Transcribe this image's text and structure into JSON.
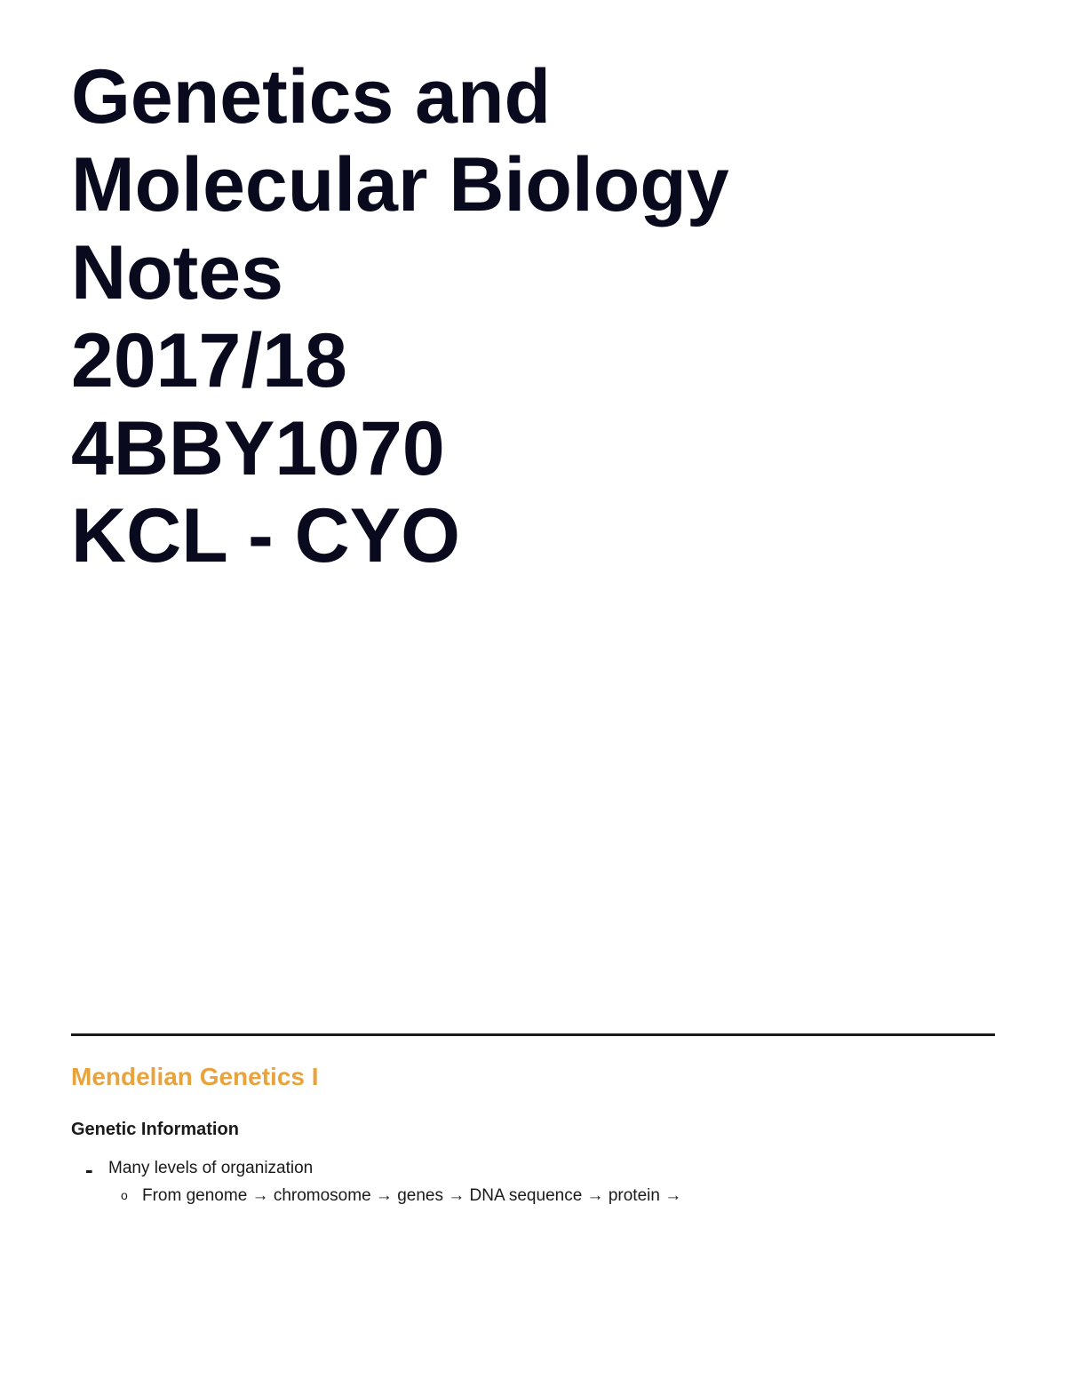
{
  "title": {
    "lines": [
      "Genetics and",
      "Molecular Biology",
      "Notes",
      "2017/18",
      "4BBY1070",
      "KCL - CYO"
    ],
    "color": "#0a0a1f",
    "fontsize": 86
  },
  "section": {
    "heading": "Mendelian Genetics I",
    "heading_color": "#e8a33d",
    "subsection": {
      "heading": "Genetic Information",
      "bullets": [
        {
          "text": "Many levels of organization",
          "subbullets": [
            "From genome → chromosome → genes → DNA sequence → protein →"
          ]
        }
      ]
    }
  },
  "divider_color": "#1a1a1a",
  "background_color": "#ffffff"
}
